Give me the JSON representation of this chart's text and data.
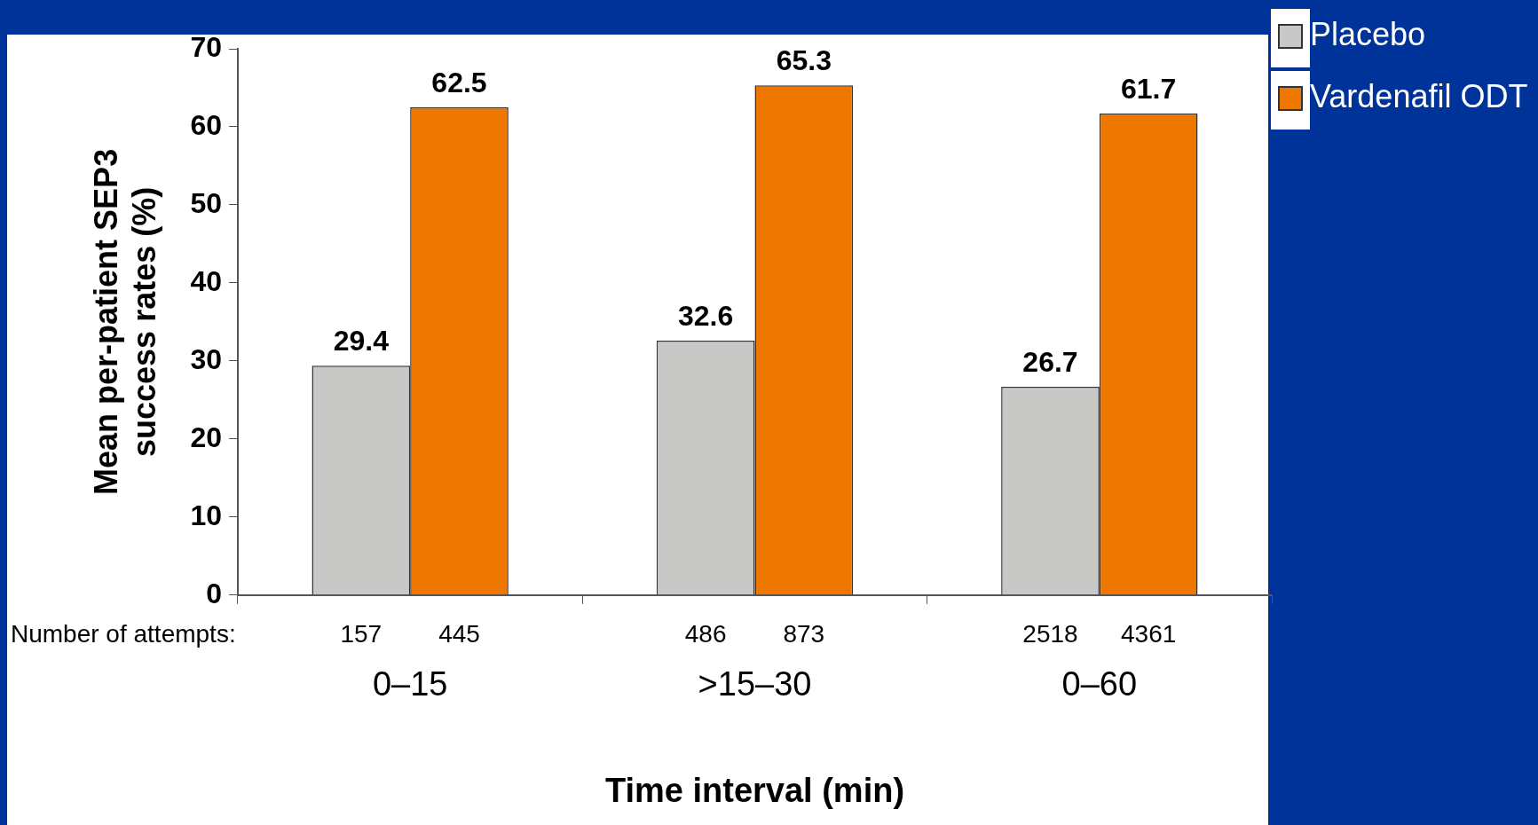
{
  "chart_data": {
    "type": "bar",
    "xlabel": "Time interval (min)",
    "ylabel": "Mean per-patient SEP3 success rates (%)",
    "categories": [
      "0–15",
      ">15–30",
      "0–60"
    ],
    "series": [
      {
        "name": "Placebo",
        "color": "#c8c9c7",
        "values": [
          29.4,
          32.6,
          26.7
        ]
      },
      {
        "name": "Vardenafil ODT",
        "color": "#ee7700",
        "values": [
          62.5,
          65.3,
          61.7
        ]
      }
    ],
    "ylim": [
      0,
      70
    ],
    "yticks": [
      0,
      10,
      20,
      30,
      40,
      50,
      60,
      70
    ],
    "grid": false,
    "legend": "top right",
    "data_labels": true,
    "annotations": [
      "Number of attempts:",
      "157",
      "445",
      "486",
      "873",
      "2518",
      "4361"
    ]
  }
}
